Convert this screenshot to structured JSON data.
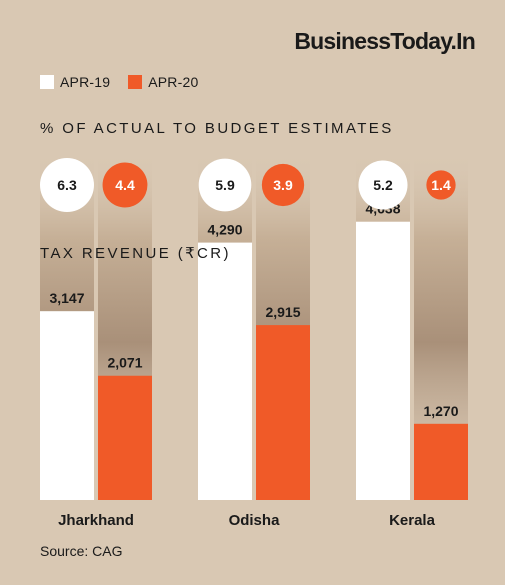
{
  "brand": "BusinessToday.In",
  "legend": [
    {
      "label": "APR-19",
      "color": "#ffffff"
    },
    {
      "label": "APR-20",
      "color": "#f05a28"
    }
  ],
  "pct_title": "% OF ACTUAL TO BUDGET ESTIMATES",
  "tax_title": "TAX REVENUE (₹CR)",
  "source": "Source: CAG",
  "chart_data": {
    "type": "bar",
    "categories": [
      "Jharkhand",
      "Odisha",
      "Kerala"
    ],
    "series": [
      {
        "name": "APR-19",
        "values": [
          3147,
          4290,
          4638
        ],
        "labels": [
          "3,147",
          "4,290",
          "4,638"
        ],
        "color": "#ffffff"
      },
      {
        "name": "APR-20",
        "values": [
          2071,
          2915,
          1270
        ],
        "labels": [
          "2,071",
          "2,915",
          "1,270"
        ],
        "color": "#f05a28"
      }
    ],
    "pct_of_budget": [
      {
        "apr19": "6.3",
        "apr20": "4.4"
      },
      {
        "apr19": "5.9",
        "apr20": "3.9"
      },
      {
        "apr19": "5.2",
        "apr20": "1.4"
      }
    ],
    "ylim": [
      0,
      5500
    ]
  }
}
